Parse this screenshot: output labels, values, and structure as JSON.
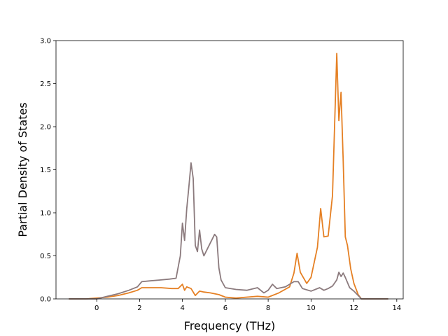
{
  "chart_data": {
    "type": "line",
    "title": "",
    "xlabel": "Frequency (THz)",
    "ylabel": "Partial Density of States",
    "xlim": [
      -1.9,
      14.3
    ],
    "ylim": [
      0.0,
      3.0
    ],
    "xticks": [
      0,
      2,
      4,
      6,
      8,
      10,
      12,
      14
    ],
    "xtick_labels": [
      "0",
      "2",
      "4",
      "6",
      "8",
      "10",
      "12",
      "14"
    ],
    "yticks": [
      0.0,
      0.5,
      1.0,
      1.5,
      2.0,
      2.5,
      3.0
    ],
    "ytick_labels": [
      "0.0",
      "0.5",
      "1.0",
      "1.5",
      "2.0",
      "2.5",
      "3.0"
    ],
    "grid": false,
    "legend": "none",
    "series": [
      {
        "color": "#e58024",
        "x": [
          -1.3,
          -0.5,
          0.0,
          0.5,
          1.0,
          1.5,
          1.9,
          2.1,
          2.5,
          3.0,
          3.5,
          3.8,
          4.0,
          4.1,
          4.2,
          4.4,
          4.6,
          4.8,
          5.0,
          5.3,
          5.7,
          6.0,
          6.5,
          7.0,
          7.5,
          8.0,
          8.5,
          9.0,
          9.2,
          9.35,
          9.5,
          9.8,
          10.0,
          10.3,
          10.45,
          10.6,
          10.8,
          11.0,
          11.2,
          11.3,
          11.4,
          11.5,
          11.6,
          11.7,
          11.85,
          12.0,
          12.2,
          12.35,
          12.5,
          13.6
        ],
        "y": [
          0.0,
          0.0,
          0.01,
          0.02,
          0.04,
          0.07,
          0.1,
          0.13,
          0.13,
          0.13,
          0.12,
          0.12,
          0.17,
          0.1,
          0.14,
          0.12,
          0.04,
          0.09,
          0.08,
          0.07,
          0.05,
          0.02,
          0.01,
          0.02,
          0.03,
          0.02,
          0.07,
          0.14,
          0.3,
          0.53,
          0.31,
          0.18,
          0.25,
          0.6,
          1.05,
          0.72,
          0.73,
          1.2,
          2.85,
          2.07,
          2.4,
          1.6,
          0.72,
          0.62,
          0.35,
          0.18,
          0.05,
          0.0,
          0.0,
          0.0
        ]
      },
      {
        "color": "#8b7a7d",
        "x": [
          -1.3,
          -0.5,
          0.0,
          0.5,
          1.0,
          1.5,
          1.9,
          2.1,
          2.5,
          3.0,
          3.4,
          3.7,
          3.9,
          4.0,
          4.1,
          4.2,
          4.3,
          4.4,
          4.5,
          4.6,
          4.7,
          4.8,
          4.9,
          5.0,
          5.2,
          5.5,
          5.6,
          5.7,
          5.8,
          6.0,
          6.5,
          7.0,
          7.5,
          7.8,
          8.0,
          8.2,
          8.4,
          8.6,
          8.8,
          9.0,
          9.2,
          9.4,
          9.6,
          10.0,
          10.4,
          10.6,
          10.8,
          11.0,
          11.2,
          11.3,
          11.4,
          11.5,
          11.6,
          11.8,
          12.0,
          12.35,
          13.6
        ],
        "y": [
          0.0,
          0.0,
          0.0,
          0.03,
          0.06,
          0.1,
          0.14,
          0.2,
          0.21,
          0.22,
          0.23,
          0.24,
          0.5,
          0.88,
          0.68,
          1.05,
          1.3,
          1.58,
          1.4,
          0.62,
          0.55,
          0.8,
          0.58,
          0.5,
          0.6,
          0.75,
          0.72,
          0.36,
          0.22,
          0.13,
          0.11,
          0.1,
          0.13,
          0.07,
          0.1,
          0.17,
          0.12,
          0.13,
          0.14,
          0.17,
          0.2,
          0.2,
          0.12,
          0.09,
          0.13,
          0.1,
          0.12,
          0.15,
          0.22,
          0.31,
          0.26,
          0.3,
          0.25,
          0.13,
          0.09,
          0.0,
          0.0
        ]
      }
    ]
  }
}
